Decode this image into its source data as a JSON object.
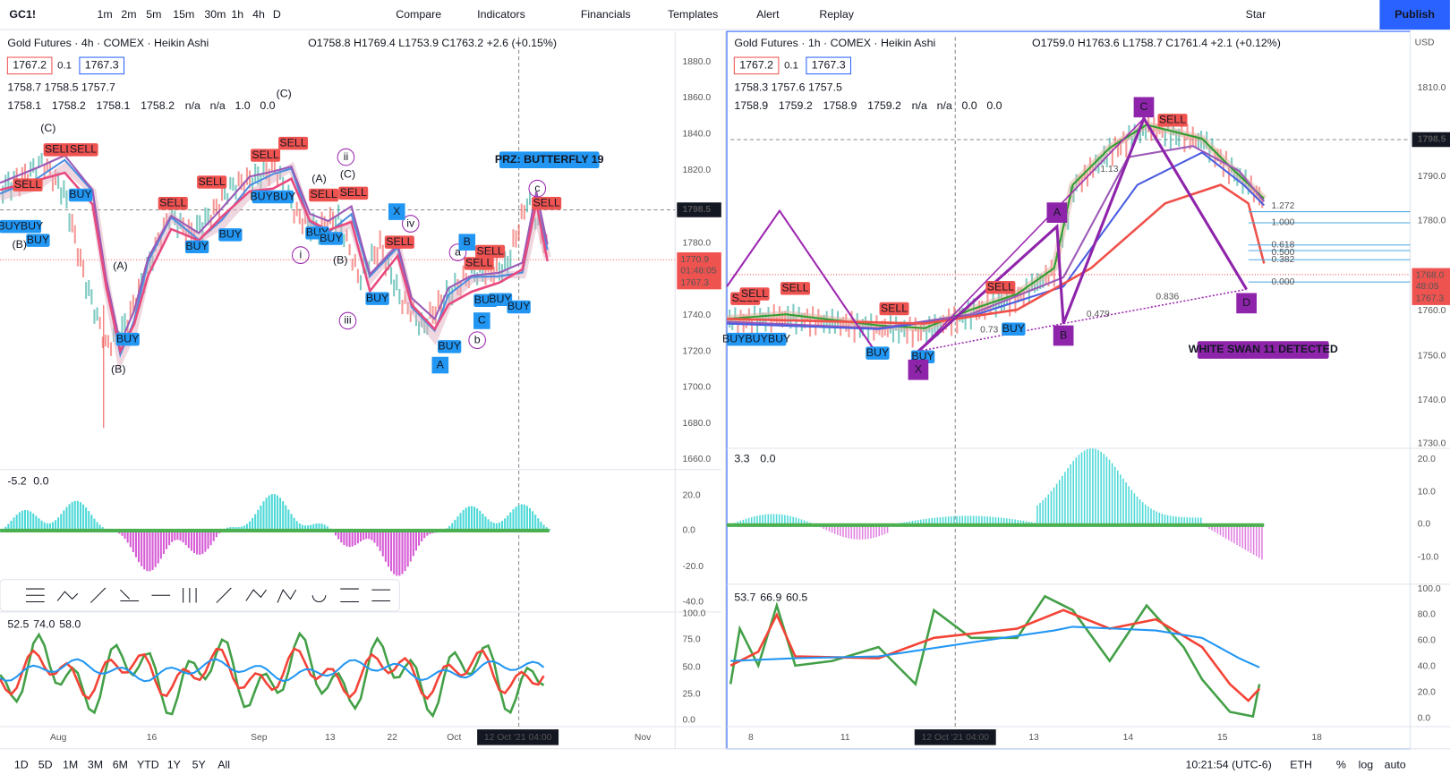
{
  "toolbar": {
    "symbol": "GC1!",
    "intervals": [
      "1m",
      "2m",
      "5m",
      "15m",
      "30m",
      "1h",
      "4h",
      "D"
    ],
    "compare": "Compare",
    "indicators": "Indicators",
    "financials": "Financials",
    "templates": "Templates",
    "alert": "Alert",
    "replay": "Replay",
    "layout": "Star",
    "publish": "Publish"
  },
  "left": {
    "title": "Gold Futures · 4h · COMEX · Heikin Ashi",
    "ohlc": "O1758.8 H1769.4 L1753.9 C1763.2 +2.6 (+0.15%)",
    "bid": "1767.2",
    "step": "0.1",
    "ask": "1767.3",
    "row1": [
      "1758.7",
      "1758.5",
      "1757.7"
    ],
    "row2": [
      "1758.1",
      "1758.2",
      "1758.1",
      "1758.2",
      "n/a",
      "n/a",
      "1.0",
      "0.0"
    ],
    "price_axis": [
      "1880.0",
      "1860.0",
      "1840.0",
      "1820.0",
      "1780.0",
      "1760.0",
      "1740.0",
      "1720.0",
      "1700.0",
      "1680.0",
      "1660.0"
    ],
    "last_price": "1798.5",
    "tags": [
      "1770.9",
      "01:48:05",
      "1767.3"
    ],
    "time_axis": [
      "Aug",
      "16",
      "Sep",
      "13",
      "22",
      "Oct",
      "Nov"
    ],
    "crosshair": "12 Oct '21   04:00",
    "osc1_legend": [
      "-5.2",
      "0.0"
    ],
    "osc1_axis": [
      "20.0",
      "0.0",
      "-20.0",
      "-40.0"
    ],
    "osc2_legend": [
      "52.5",
      "74.0",
      "58.0"
    ],
    "osc2_axis": [
      "100.0",
      "75.0",
      "50.0",
      "25.0",
      "0.0"
    ],
    "banner": "PRZ: BUTTERFLY 19",
    "signals": [
      "SELL",
      "SELL",
      "SELL",
      "BUY",
      "BUY",
      "BUYBUY",
      "SELL",
      "SELL",
      "SELL",
      "SELL",
      "BUY",
      "BUY",
      "BUYBUY",
      "SELL",
      "SELL",
      "BUY",
      "BUY",
      "SELL",
      "BUY",
      "SELL",
      "SELL",
      "BUY",
      "BUY",
      "BUY",
      "BUY",
      "BUY",
      "SELL"
    ],
    "waves": [
      "(C)",
      "(C)",
      "(B)",
      "(A)",
      "(B)",
      "(A)",
      "(C)",
      "(B)",
      "ii",
      "i",
      "iii",
      "iv",
      "a",
      "b",
      "c"
    ],
    "points": [
      "X",
      "B",
      "C",
      "A"
    ]
  },
  "right": {
    "title": "Gold Futures · 1h · COMEX · Heikin Ashi",
    "ohlc": "O1759.0 H1763.6 L1758.7 C1761.4 +2.1 (+0.12%)",
    "bid": "1767.2",
    "step": "0.1",
    "ask": "1767.3",
    "row1": [
      "1758.3",
      "1757.6",
      "1757.5"
    ],
    "row2": [
      "1758.9",
      "1759.2",
      "1758.9",
      "1759.2",
      "n/a",
      "n/a",
      "0.0",
      "0.0"
    ],
    "currency": "USD",
    "price_axis": [
      "1810.0",
      "1790.0",
      "1780.0",
      "1760.0",
      "1750.0",
      "1740.0",
      "1730.0"
    ],
    "last_price": "1798.5",
    "tags": [
      "1768.0",
      "48:05",
      "1767.3"
    ],
    "time_axis": [
      "8",
      "11",
      "13",
      "14",
      "15",
      "18"
    ],
    "crosshair": "12 Oct '21   04:00",
    "osc1_legend": [
      "3.3",
      "0.0"
    ],
    "osc1_axis": [
      "20.0",
      "10.0",
      "0.0",
      "-10.0"
    ],
    "osc2_legend": [
      "53.7",
      "66.9",
      "60.5"
    ],
    "osc2_axis": [
      "100.0",
      "80.0",
      "60.0",
      "40.0",
      "20.0",
      "0.0"
    ],
    "fib": [
      "1.272",
      "1.000",
      "0.618",
      "0.500",
      "0.382",
      "0.000"
    ],
    "ratios": [
      "0.479",
      "0.836",
      "0.73",
      "1.13"
    ],
    "banner": "WHITE SWAN 11 DETECTED",
    "signals": [
      "SELL",
      "SELL",
      "SELL",
      "BUYBUYBUY",
      "BUY",
      "BUY",
      "SELL",
      "BUY",
      "SELL",
      "SELL"
    ],
    "points": [
      "X",
      "A",
      "B",
      "C",
      "D"
    ]
  },
  "bottom": {
    "ranges": [
      "1D",
      "5D",
      "1M",
      "3M",
      "6M",
      "YTD",
      "1Y",
      "5Y",
      "All"
    ],
    "clock": "10:21:54 (UTC-6)",
    "session": "ETH",
    "percent": "%",
    "log": "log",
    "auto": "auto"
  }
}
